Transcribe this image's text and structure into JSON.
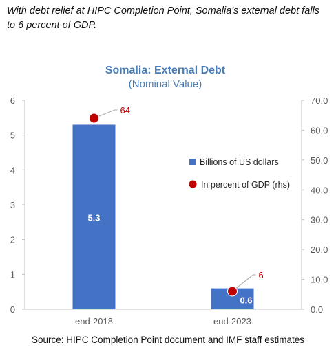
{
  "headline": "With debt relief at HIPC Completion Point, Somalia's external debt falls to 6 percent of GDP.",
  "source": "Source: HIPC Completion Point document and IMF staff estimates",
  "colors": {
    "bar": "#4472C4",
    "dot": "#C00000",
    "title": "#4A7DB5",
    "axis": "#7F7F7F"
  },
  "chart_data": {
    "type": "bar",
    "title": "Somalia: External Debt",
    "subtitle": "(Nominal Value)",
    "categories": [
      "end-2018",
      "end-2023"
    ],
    "series": [
      {
        "name": "Billions of US dollars",
        "type": "bar",
        "axis": "left",
        "values": [
          5.3,
          0.6
        ],
        "labels": [
          "5.3",
          "0.6"
        ]
      },
      {
        "name": "In percent of GDP (rhs)",
        "type": "scatter",
        "axis": "right",
        "values": [
          64,
          6
        ],
        "labels": [
          "64",
          "6"
        ]
      }
    ],
    "ylim": [
      0,
      6
    ],
    "yticks": [
      "0",
      "1",
      "2",
      "3",
      "4",
      "5",
      "6"
    ],
    "y2lim": [
      0,
      70
    ],
    "y2ticks": [
      "0.0",
      "10.0",
      "20.0",
      "30.0",
      "40.0",
      "50.0",
      "60.0",
      "70.0"
    ],
    "legend": "center-right",
    "grid": false
  }
}
